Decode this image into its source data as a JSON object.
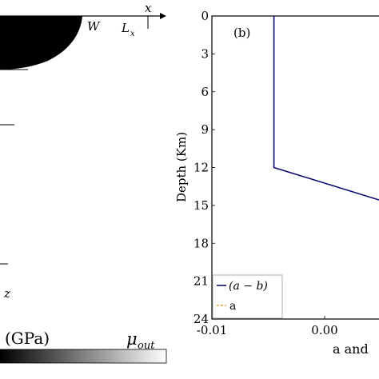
{
  "left_panel": {
    "x_axis_label": "x",
    "w_label": "W",
    "lx_label": "L",
    "lx_subscript": "x",
    "z_axis_label": "z",
    "colorbar_unit": "(GPa)",
    "colorbar_max_label": "μ",
    "colorbar_max_subscript": "out"
  },
  "chart_data": {
    "type": "line",
    "panel_label": "(b)",
    "ylabel": "Depth (Km)",
    "xlabel": "a and",
    "y_inverted": true,
    "ylim": [
      0,
      24
    ],
    "xlim": [
      -0.01,
      0.01
    ],
    "y_ticks": [
      "0",
      "3",
      "6",
      "9",
      "12",
      "15",
      "18",
      "21",
      "24"
    ],
    "x_ticks": [
      "-0.01",
      "0.00"
    ],
    "grid": false,
    "legend_position": "bottom-left",
    "series": [
      {
        "name": "(a − b)",
        "color": "#0b0b6e",
        "style": "solid",
        "x": [
          -0.0045,
          -0.0045,
          0.0064
        ],
        "y": [
          0,
          12,
          15
        ]
      },
      {
        "name": "a",
        "color": "#e8a33d",
        "style": "dashed",
        "x": [],
        "y": []
      }
    ]
  }
}
